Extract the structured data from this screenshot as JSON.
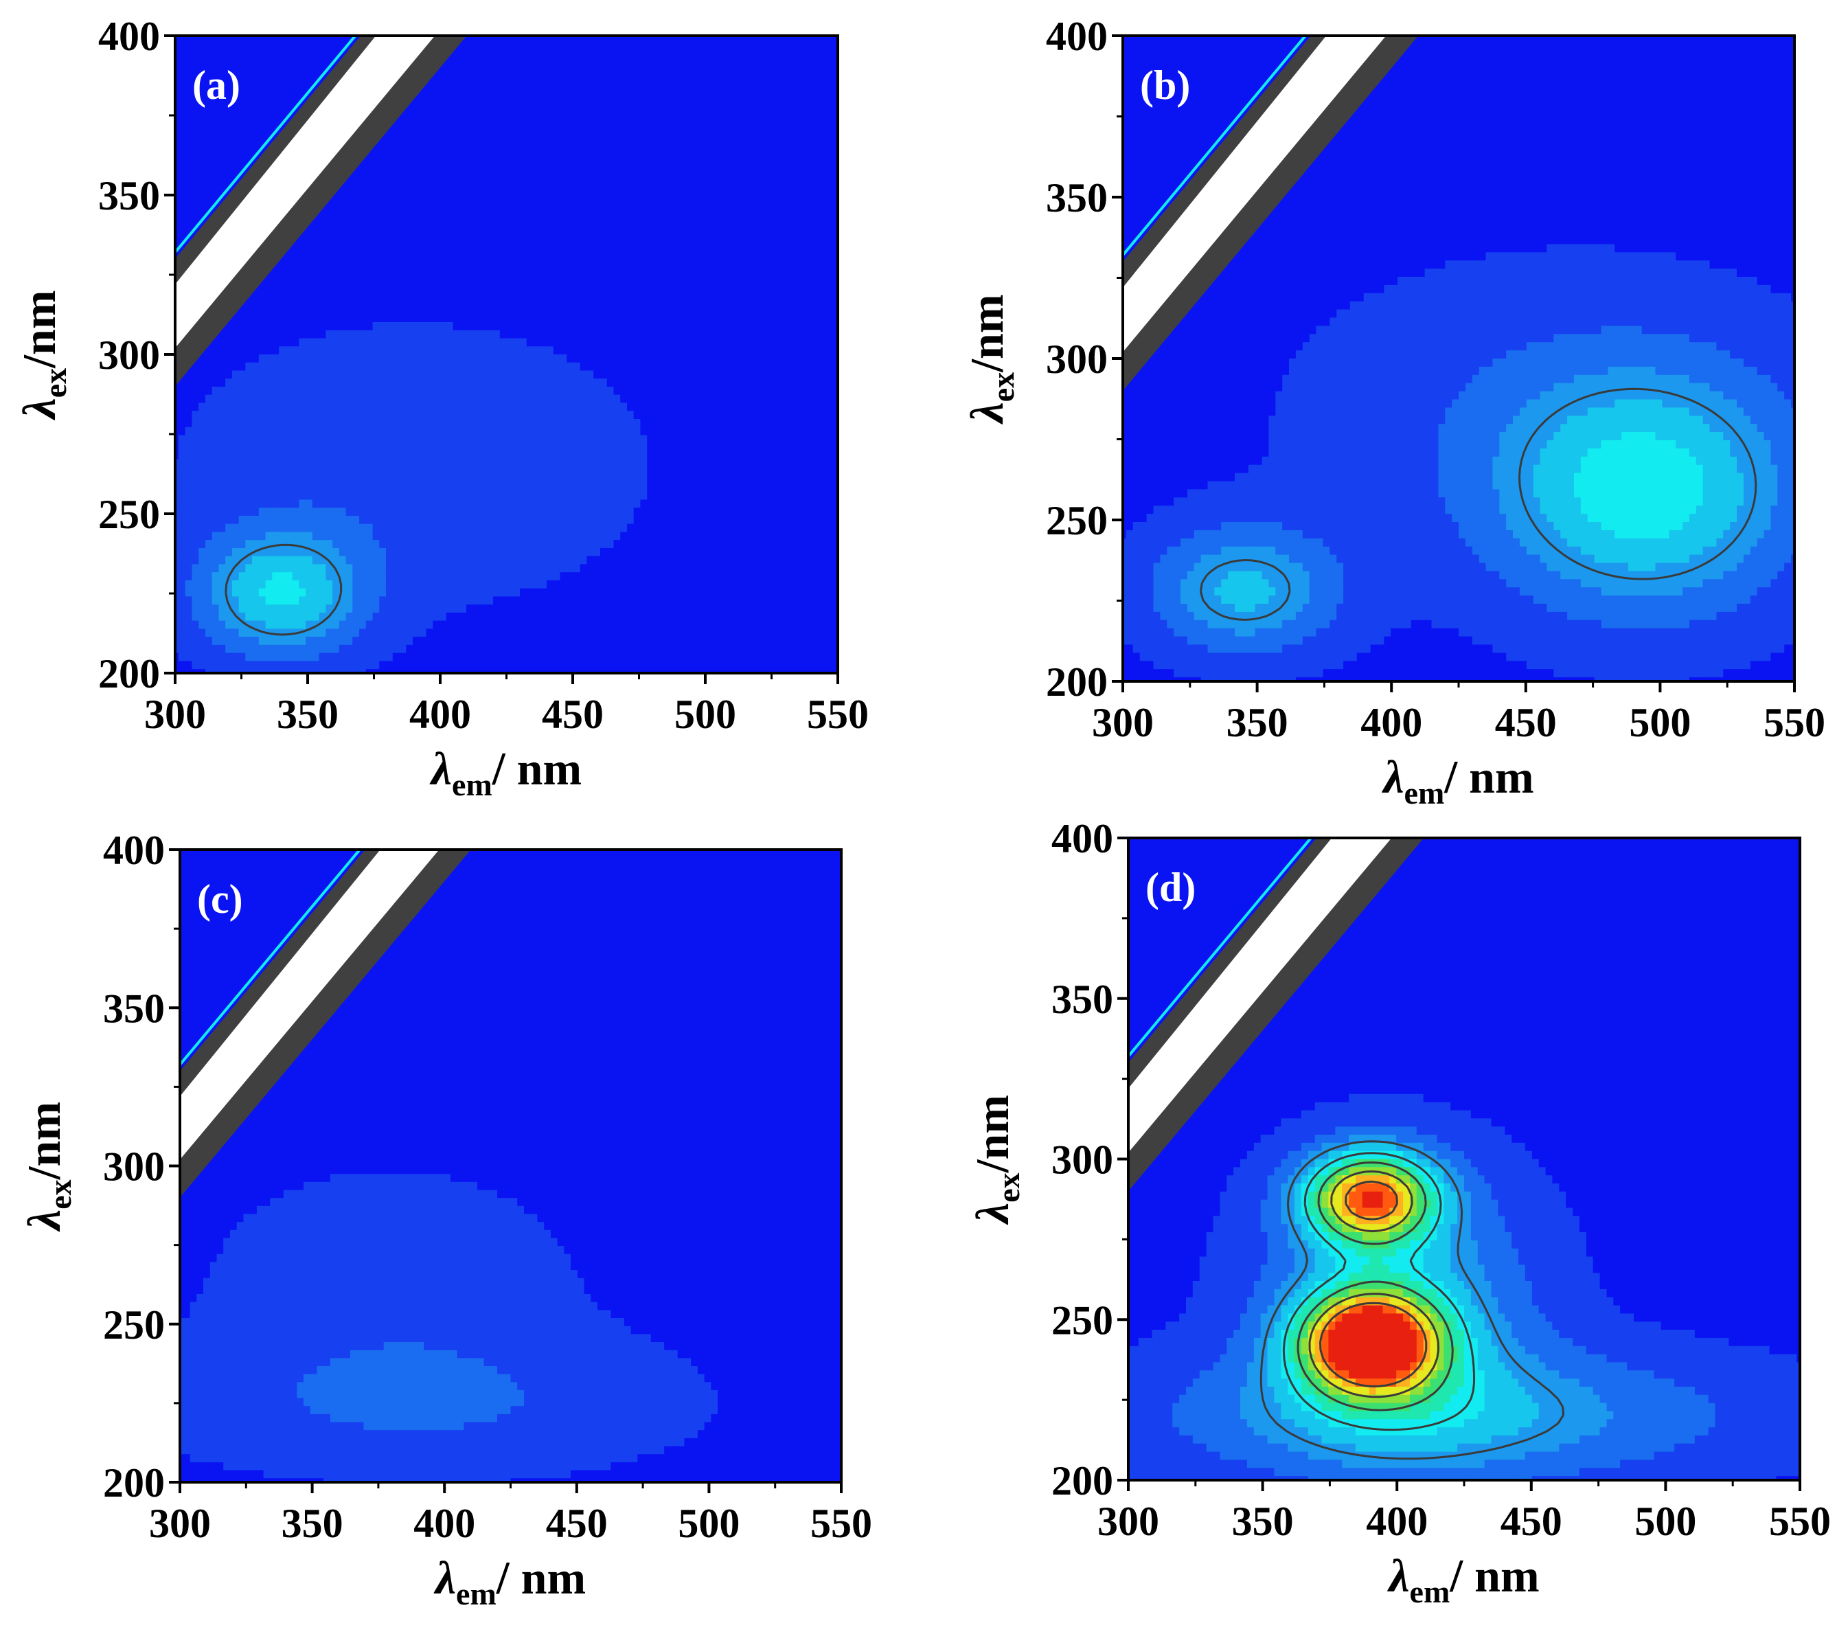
{
  "figure_title": "",
  "colors": {
    "background": "#0a14f2",
    "level_1": "#1640f0",
    "level_2": "#1a6cf0",
    "level_3": "#1c98ee",
    "level_4": "#17c6ec",
    "level_5": "#12ecf0",
    "level_6": "#1ee8b0",
    "level_7": "#3ce070",
    "level_8": "#8fe038",
    "level_9": "#e6e91e",
    "level_10": "#ffb020",
    "level_11": "#ff5a10",
    "level_12": "#e82010",
    "contour_line": "#3a3a3a",
    "scatter_band": "#ffffff",
    "scatter_edge": "#404040"
  },
  "chart_data": [
    {
      "type": "heatmap",
      "panel": "(a)",
      "xlabel": {
        "symbol": "λ",
        "subscript": "em",
        "unit": "/ nm"
      },
      "ylabel": {
        "symbol": "λ",
        "subscript": "ex",
        "unit": "/nm"
      },
      "xlim": [
        300,
        550
      ],
      "ylim": [
        200,
        400
      ],
      "xticks": [
        "300",
        "350",
        "400",
        "450",
        "500",
        "550"
      ],
      "yticks": [
        "200",
        "250",
        "300",
        "350",
        "400"
      ],
      "background_level": 0.05,
      "peaks": [
        {
          "em": 340,
          "ex": 225,
          "intensity": 0.36,
          "sigma_em": 22,
          "sigma_ex": 14
        },
        {
          "em": 390,
          "ex": 265,
          "intensity": 0.1,
          "sigma_em": 60,
          "sigma_ex": 30
        }
      ],
      "contour_levels": [
        0.3
      ]
    },
    {
      "type": "heatmap",
      "panel": "(b)",
      "xlabel": {
        "symbol": "λ",
        "subscript": "em",
        "unit": "/ nm"
      },
      "ylabel": {
        "symbol": "λ",
        "subscript": "ex",
        "unit": "/nm"
      },
      "xlim": [
        300,
        550
      ],
      "ylim": [
        200,
        400
      ],
      "xticks": [
        "300",
        "350",
        "400",
        "450",
        "500",
        "550"
      ],
      "yticks": [
        "200",
        "250",
        "300",
        "350",
        "400"
      ],
      "background_level": 0.05,
      "peaks": [
        {
          "em": 345,
          "ex": 228,
          "intensity": 0.3,
          "sigma_em": 25,
          "sigma_ex": 14
        },
        {
          "em": 495,
          "ex": 258,
          "intensity": 0.36,
          "sigma_em": 38,
          "sigma_ex": 26
        },
        {
          "em": 460,
          "ex": 280,
          "intensity": 0.1,
          "sigma_em": 70,
          "sigma_ex": 35
        }
      ],
      "contour_levels": [
        0.3
      ]
    },
    {
      "type": "heatmap",
      "panel": "(c)",
      "xlabel": {
        "symbol": "λ",
        "subscript": "em",
        "unit": "/ nm"
      },
      "ylabel": {
        "symbol": "λ",
        "subscript": "ex",
        "unit": "/nm"
      },
      "xlim": [
        300,
        550
      ],
      "ylim": [
        200,
        400
      ],
      "xticks": [
        "300",
        "350",
        "400",
        "450",
        "500",
        "550"
      ],
      "yticks": [
        "200",
        "250",
        "300",
        "350",
        "400"
      ],
      "background_level": 0.05,
      "peaks": [
        {
          "em": 390,
          "ex": 225,
          "intensity": 0.12,
          "sigma_em": 70,
          "sigma_ex": 16
        },
        {
          "em": 380,
          "ex": 265,
          "intensity": 0.08,
          "sigma_em": 50,
          "sigma_ex": 25
        }
      ],
      "contour_levels": [
        0.3
      ]
    },
    {
      "type": "heatmap",
      "panel": "(d)",
      "xlabel": {
        "symbol": "λ",
        "subscript": "em",
        "unit": "/ nm"
      },
      "ylabel": {
        "symbol": "λ",
        "subscript": "ex",
        "unit": "/nm"
      },
      "xlim": [
        300,
        550
      ],
      "ylim": [
        200,
        400
      ],
      "xticks": [
        "300",
        "350",
        "400",
        "450",
        "500",
        "550"
      ],
      "yticks": [
        "200",
        "250",
        "300",
        "350",
        "400"
      ],
      "background_level": 0.05,
      "peaks": [
        {
          "em": 390,
          "ex": 243,
          "intensity": 1.0,
          "sigma_em": 18,
          "sigma_ex": 11
        },
        {
          "em": 390,
          "ex": 288,
          "intensity": 0.82,
          "sigma_em": 17,
          "sigma_ex": 10
        },
        {
          "em": 400,
          "ex": 255,
          "intensity": 0.3,
          "sigma_em": 35,
          "sigma_ex": 30
        },
        {
          "em": 420,
          "ex": 220,
          "intensity": 0.25,
          "sigma_em": 80,
          "sigma_ex": 15
        }
      ],
      "contour_levels": [
        0.3,
        0.45,
        0.6,
        0.75,
        0.9
      ]
    }
  ]
}
